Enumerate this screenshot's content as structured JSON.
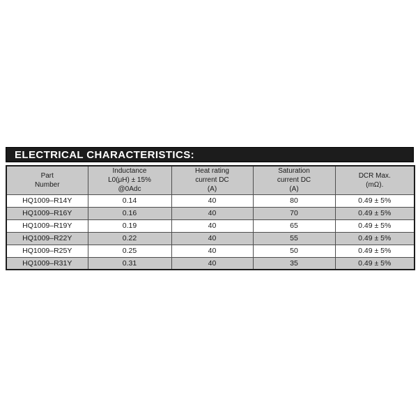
{
  "title_bar": {
    "label": "ELECTRICAL CHARACTERISTICS:"
  },
  "table": {
    "headers": [
      "Part\nNumber",
      "Inductance\nL0(μH) ± 15%\n@0Adc",
      "Heat rating\ncurrent DC\n(A)",
      "Saturation\ncurrent DC\n(A)",
      "DCR Max.\n(mΩ)."
    ],
    "rows": [
      [
        "HQ1009–R14Y",
        "0.14",
        "40",
        "80",
        "0.49 ± 5%"
      ],
      [
        "HQ1009–R16Y",
        "0.16",
        "40",
        "70",
        "0.49 ± 5%"
      ],
      [
        "HQ1009–R19Y",
        "0.19",
        "40",
        "65",
        "0.49 ± 5%"
      ],
      [
        "HQ1009–R22Y",
        "0.22",
        "40",
        "55",
        "0.49 ± 5%"
      ],
      [
        "HQ1009–R25Y",
        "0.25",
        "40",
        "50",
        "0.49 ± 5%"
      ],
      [
        "HQ1009–R31Y",
        "0.31",
        "40",
        "35",
        "0.49 ± 5%"
      ]
    ]
  },
  "colors": {
    "title_bar_bg": "#1c1c1c",
    "title_text": "#ffffff",
    "header_row_bg": "#c9c9c9",
    "alt_row_bg": "#c9c9c9",
    "row_bg": "#ffffff",
    "grid_line": "#4d4d4d",
    "outer_border": "#1c1c1c"
  }
}
